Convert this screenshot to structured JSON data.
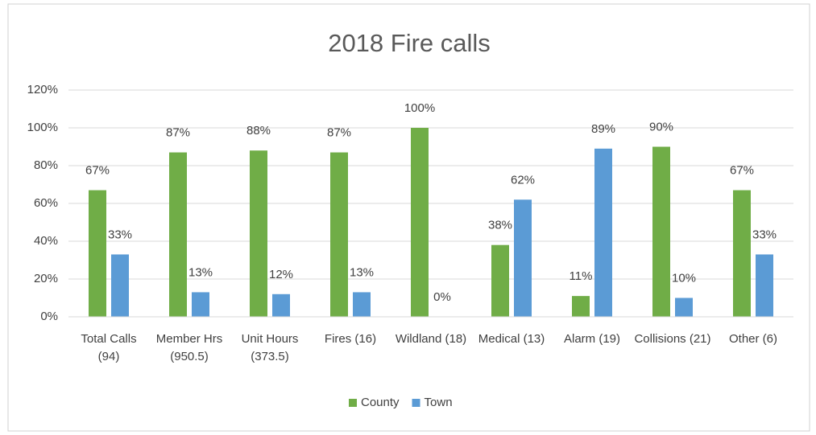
{
  "chart_data": {
    "type": "bar",
    "title": "2018 Fire calls",
    "categories": [
      "Total Calls (94)",
      "Member Hrs (950.5)",
      "Unit Hours (373.5)",
      "Fires (16)",
      "Wildland (18)",
      "Medical (13)",
      "Alarm (19)",
      "Collisions (21)",
      "Other (6)"
    ],
    "series": [
      {
        "name": "County",
        "color": "#70ad47",
        "values": [
          67,
          87,
          88,
          87,
          100,
          38,
          11,
          90,
          67
        ],
        "value_labels": [
          "67%",
          "87%",
          "88%",
          "87%",
          "100%",
          "38%",
          "11%",
          "90%",
          "67%"
        ]
      },
      {
        "name": "Town",
        "color": "#5b9bd5",
        "values": [
          33,
          13,
          12,
          13,
          0,
          62,
          89,
          10,
          33
        ],
        "value_labels": [
          "33%",
          "13%",
          "12%",
          "13%",
          "0%",
          "62%",
          "89%",
          "10%",
          "33%"
        ]
      }
    ],
    "ylim": [
      0,
      120
    ],
    "yticks": [
      {
        "value": 0,
        "label": "0%"
      },
      {
        "value": 20,
        "label": "20%"
      },
      {
        "value": 40,
        "label": "40%"
      },
      {
        "value": 60,
        "label": "60%"
      },
      {
        "value": 80,
        "label": "80%"
      },
      {
        "value": 100,
        "label": "100%"
      },
      {
        "value": 120,
        "label": "120%"
      }
    ],
    "grid": true,
    "legend": "bottom"
  }
}
